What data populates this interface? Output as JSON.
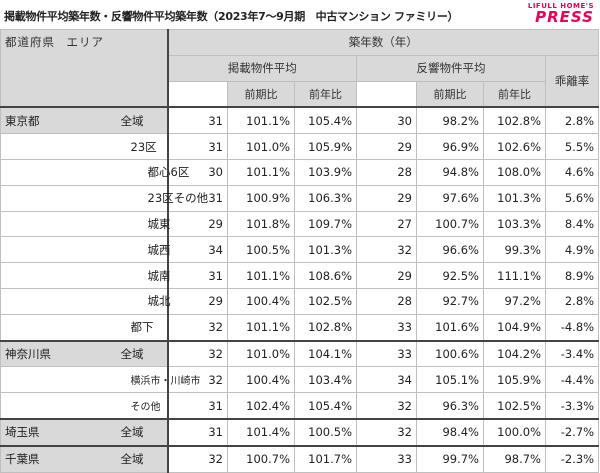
{
  "title": "掲載物件平均築年数・反響物件平均築年数（2023年7～9月期　中古マンション ファミリー）",
  "logo": {
    "line1": "LIFULL HOME'S",
    "line2": "PRESS"
  },
  "header": {
    "col_pref": "都道府県",
    "col_area": "エリア",
    "group": "築年数（年）",
    "listed": "掲載物件平均",
    "response": "反響物件平均",
    "gap": "乖離率",
    "yoy1": "前期比",
    "yoy2": "前年比"
  },
  "rows": [
    {
      "pref": "東京都",
      "area": "全域",
      "indent": "ind0",
      "gray": true,
      "v": [
        "31",
        "101.1%",
        "105.4%",
        "30",
        "98.2%",
        "102.8%",
        "2.8%"
      ]
    },
    {
      "pref": "",
      "area": "23区",
      "indent": "ind1",
      "gray": false,
      "v": [
        "31",
        "101.0%",
        "105.9%",
        "29",
        "96.9%",
        "102.6%",
        "5.5%"
      ]
    },
    {
      "pref": "",
      "area": "都心6区",
      "indent": "ind2",
      "gray": false,
      "v": [
        "30",
        "101.1%",
        "103.9%",
        "28",
        "94.8%",
        "108.0%",
        "4.6%"
      ]
    },
    {
      "pref": "",
      "area": "23区その他",
      "indent": "ind2",
      "gray": false,
      "v": [
        "31",
        "100.9%",
        "106.3%",
        "29",
        "97.6%",
        "101.3%",
        "5.6%"
      ]
    },
    {
      "pref": "",
      "area": "城東",
      "indent": "ind2",
      "gray": false,
      "v": [
        "29",
        "101.8%",
        "109.7%",
        "27",
        "100.7%",
        "103.3%",
        "8.4%"
      ]
    },
    {
      "pref": "",
      "area": "城西",
      "indent": "ind2",
      "gray": false,
      "v": [
        "34",
        "100.5%",
        "101.3%",
        "32",
        "96.6%",
        "99.3%",
        "4.9%"
      ]
    },
    {
      "pref": "",
      "area": "城南",
      "indent": "ind2",
      "gray": false,
      "v": [
        "31",
        "101.1%",
        "108.6%",
        "29",
        "92.5%",
        "111.1%",
        "8.9%"
      ]
    },
    {
      "pref": "",
      "area": "城北",
      "indent": "ind2",
      "gray": false,
      "v": [
        "29",
        "100.4%",
        "102.5%",
        "28",
        "92.7%",
        "97.2%",
        "2.8%"
      ]
    },
    {
      "pref": "",
      "area": "都下",
      "indent": "ind1",
      "gray": false,
      "v": [
        "32",
        "101.1%",
        "102.8%",
        "33",
        "101.6%",
        "104.9%",
        "-4.8%"
      ]
    },
    {
      "pref": "神奈川県",
      "area": "全域",
      "indent": "ind0",
      "gray": true,
      "v": [
        "32",
        "101.0%",
        "104.1%",
        "33",
        "100.6%",
        "104.2%",
        "-3.4%"
      ]
    },
    {
      "pref": "",
      "area": "横浜市・川崎市",
      "indent": "ind2s",
      "gray": false,
      "v": [
        "32",
        "100.4%",
        "103.4%",
        "34",
        "105.1%",
        "105.9%",
        "-4.4%"
      ]
    },
    {
      "pref": "",
      "area": "その他",
      "indent": "ind2s",
      "gray": false,
      "v": [
        "31",
        "102.4%",
        "105.4%",
        "32",
        "96.3%",
        "102.5%",
        "-3.3%"
      ]
    },
    {
      "pref": "埼玉県",
      "area": "全域",
      "indent": "ind0",
      "gray": true,
      "v": [
        "31",
        "101.4%",
        "100.5%",
        "32",
        "98.4%",
        "100.0%",
        "-2.7%"
      ]
    },
    {
      "pref": "千葉県",
      "area": "全域",
      "indent": "ind0",
      "gray": true,
      "v": [
        "32",
        "100.7%",
        "101.7%",
        "33",
        "99.7%",
        "98.7%",
        "-2.3%"
      ]
    }
  ]
}
